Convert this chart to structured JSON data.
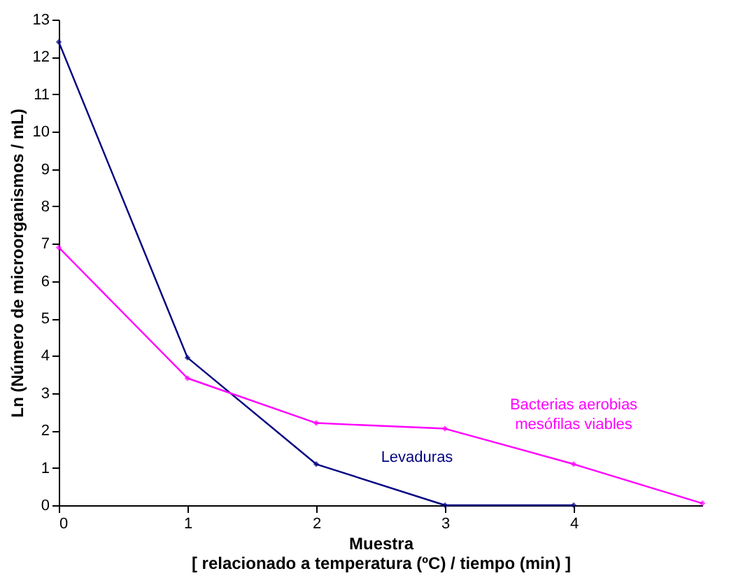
{
  "chart_data": {
    "type": "line",
    "xlabel": "Muestra\n[ relacionado a temperatura (ºC) / tiempo (min) ]",
    "ylabel": "Ln (Número de microorganismos / mL)",
    "xlim": [
      0,
      5
    ],
    "xticks": [
      0,
      1,
      2,
      3,
      4
    ],
    "ylim": [
      0,
      13
    ],
    "yticks": [
      0,
      1,
      2,
      3,
      4,
      5,
      6,
      7,
      8,
      9,
      10,
      11,
      12,
      13
    ],
    "grid": false,
    "marker": "diamond",
    "line_style": "solid",
    "series": [
      {
        "name": "Levaduras",
        "color": "#000080",
        "x": [
          0,
          1,
          2,
          3,
          4
        ],
        "values": [
          12.4,
          3.95,
          1.1,
          0,
          0
        ]
      },
      {
        "name": "Bacterias aerobias\nmesófilas viables",
        "color": "#ff00ff",
        "x": [
          0,
          1,
          2,
          3,
          4,
          5
        ],
        "values": [
          6.9,
          3.4,
          2.2,
          2.05,
          1.1,
          0.05
        ]
      }
    ]
  }
}
